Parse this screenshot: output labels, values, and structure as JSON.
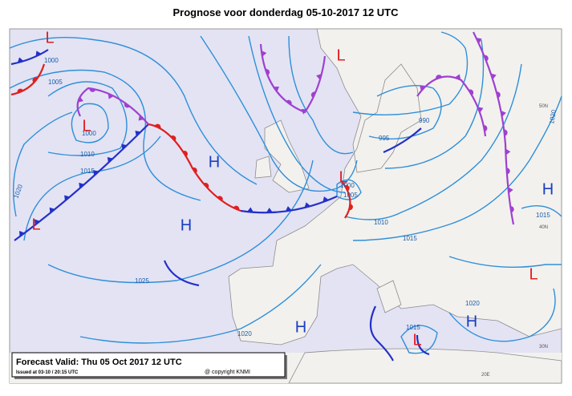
{
  "title": "Prognose voor donderdag 05-10-2017 12 UTC",
  "highs": [
    "H",
    "H",
    "H",
    "H",
    "H"
  ],
  "lows": [
    "L",
    "L",
    "L",
    "L",
    "L",
    "L",
    "L"
  ],
  "isobar_labels": [
    "1000",
    "1005",
    "1000",
    "1010",
    "1015",
    "1020",
    "1000",
    "1005",
    "995",
    "990",
    "1010",
    "1015",
    "1025",
    "1020",
    "1015",
    "1020",
    "1015",
    "1020"
  ],
  "grid_labels": [
    "50N",
    "40N",
    "30N",
    "20E"
  ],
  "legend": {
    "valid": "Forecast Valid:  Thu 05 Oct 2017 12 UTC",
    "issued": "Issued at 03-10 / 20:15 UTC",
    "copyright": "@ copyright KNMI"
  }
}
